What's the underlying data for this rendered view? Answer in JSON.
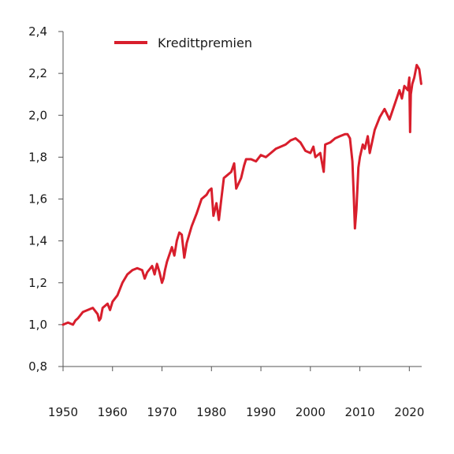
{
  "chart_data": {
    "type": "line",
    "title": "",
    "xlabel": "",
    "ylabel": "",
    "xlim": [
      1950,
      2022.5
    ],
    "ylim": [
      0.8,
      2.4
    ],
    "grid": false,
    "legend_position": "top-left",
    "x_ticks": [
      "1950",
      "1960",
      "1970",
      "1980",
      "1990",
      "2000",
      "2010",
      "2020"
    ],
    "y_ticks": [
      "0,8",
      "1,0",
      "1,2",
      "1,4",
      "1,6",
      "1,8",
      "2,0",
      "2,2",
      "2,4"
    ],
    "series": [
      {
        "name": "Kredittpremien",
        "color": "#d81e2c",
        "x": [
          1950,
          1951,
          1952,
          1952.5,
          1953,
          1954,
          1955,
          1956,
          1957,
          1957.3,
          1957.6,
          1958,
          1959,
          1959.5,
          1960,
          1961,
          1962,
          1963,
          1964,
          1965,
          1966,
          1966.5,
          1967,
          1968,
          1968.5,
          1969,
          1969.5,
          1970,
          1970.3,
          1970.6,
          1971,
          1972,
          1972.5,
          1973,
          1973.5,
          1974,
          1974.5,
          1975,
          1976,
          1977,
          1978,
          1979,
          1979.5,
          1980,
          1980.4,
          1981,
          1981.5,
          1982,
          1982.5,
          1983,
          1984,
          1984.6,
          1985,
          1986,
          1986.6,
          1987,
          1988,
          1989,
          1990,
          1991,
          1992,
          1993,
          1994,
          1995,
          1996,
          1997,
          1998,
          1999,
          2000,
          2000.6,
          2001,
          2002,
          2002.7,
          2003,
          2004,
          2005,
          2006,
          2007,
          2007.5,
          2008,
          2008.5,
          2008.8,
          2009,
          2009.3,
          2009.7,
          2010,
          2010.6,
          2011,
          2011.6,
          2012,
          2013,
          2014,
          2015,
          2015.6,
          2016,
          2017,
          2018,
          2018.5,
          2019,
          2019.7,
          2020,
          2020.15,
          2020.3,
          2020.6,
          2021,
          2021.5,
          2022,
          2022.4
        ],
        "values": [
          1.0,
          1.01,
          1.0,
          1.02,
          1.03,
          1.06,
          1.07,
          1.08,
          1.05,
          1.02,
          1.03,
          1.08,
          1.1,
          1.07,
          1.11,
          1.14,
          1.2,
          1.24,
          1.26,
          1.27,
          1.26,
          1.22,
          1.25,
          1.28,
          1.24,
          1.29,
          1.25,
          1.2,
          1.22,
          1.26,
          1.3,
          1.37,
          1.33,
          1.4,
          1.44,
          1.43,
          1.32,
          1.39,
          1.47,
          1.53,
          1.6,
          1.62,
          1.64,
          1.65,
          1.52,
          1.58,
          1.5,
          1.6,
          1.7,
          1.71,
          1.73,
          1.77,
          1.65,
          1.7,
          1.76,
          1.79,
          1.79,
          1.78,
          1.81,
          1.8,
          1.82,
          1.84,
          1.85,
          1.86,
          1.88,
          1.89,
          1.87,
          1.83,
          1.82,
          1.85,
          1.8,
          1.82,
          1.73,
          1.86,
          1.87,
          1.89,
          1.9,
          1.91,
          1.91,
          1.89,
          1.78,
          1.6,
          1.46,
          1.55,
          1.75,
          1.8,
          1.86,
          1.84,
          1.9,
          1.82,
          1.93,
          1.99,
          2.03,
          2.0,
          1.98,
          2.05,
          2.12,
          2.08,
          2.14,
          2.12,
          2.18,
          1.92,
          2.1,
          2.15,
          2.18,
          2.24,
          2.22,
          2.15
        ]
      }
    ]
  }
}
